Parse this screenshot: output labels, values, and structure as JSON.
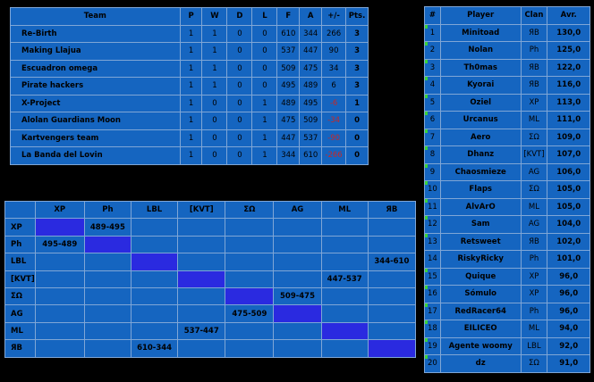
{
  "standings": {
    "headers": [
      "Team",
      "P",
      "W",
      "D",
      "L",
      "F",
      "A",
      "+/-",
      "Pts."
    ],
    "rows": [
      {
        "team": "Re-Birth",
        "p": "1",
        "w": "1",
        "d": "0",
        "l": "0",
        "f": "610",
        "a": "344",
        "diff": "266",
        "pts": "3",
        "neg": false
      },
      {
        "team": "Making Llajua",
        "p": "1",
        "w": "1",
        "d": "0",
        "l": "0",
        "f": "537",
        "a": "447",
        "diff": "90",
        "pts": "3",
        "neg": false
      },
      {
        "team": "Escuadron omega",
        "p": "1",
        "w": "1",
        "d": "0",
        "l": "0",
        "f": "509",
        "a": "475",
        "diff": "34",
        "pts": "3",
        "neg": false
      },
      {
        "team": "Pirate hackers",
        "p": "1",
        "w": "1",
        "d": "0",
        "l": "0",
        "f": "495",
        "a": "489",
        "diff": "6",
        "pts": "3",
        "neg": false
      },
      {
        "team": "X-Project",
        "p": "1",
        "w": "0",
        "d": "0",
        "l": "1",
        "f": "489",
        "a": "495",
        "diff": "-6",
        "pts": "1",
        "neg": true
      },
      {
        "team": "Alolan Guardians Moon",
        "p": "1",
        "w": "0",
        "d": "0",
        "l": "1",
        "f": "475",
        "a": "509",
        "diff": "-34",
        "pts": "0",
        "neg": true
      },
      {
        "team": "Kartvengers team",
        "p": "1",
        "w": "0",
        "d": "0",
        "l": "1",
        "f": "447",
        "a": "537",
        "diff": "-90",
        "pts": "0",
        "neg": true
      },
      {
        "team": "La Banda del Lovin",
        "p": "1",
        "w": "0",
        "d": "0",
        "l": "1",
        "f": "344",
        "a": "610",
        "diff": "-266",
        "pts": "0",
        "neg": true
      }
    ]
  },
  "matrix": {
    "corner": "",
    "clans": [
      "XP",
      "Ph",
      "LBL",
      "[KVT]",
      "ΣΩ",
      "AG",
      "ML",
      "ЯB"
    ],
    "cells": [
      [
        "",
        "489-495",
        "",
        "",
        "",
        "",
        "",
        ""
      ],
      [
        "495-489",
        "",
        "",
        "",
        "",
        "",
        "",
        ""
      ],
      [
        "",
        "",
        "",
        "",
        "",
        "",
        "",
        "344-610"
      ],
      [
        "",
        "",
        "",
        "",
        "",
        "",
        "447-537",
        ""
      ],
      [
        "",
        "",
        "",
        "",
        "",
        "509-475",
        "",
        ""
      ],
      [
        "",
        "",
        "",
        "",
        "475-509",
        "",
        "",
        ""
      ],
      [
        "",
        "",
        "",
        "537-447",
        "",
        "",
        "",
        ""
      ],
      [
        "",
        "",
        "610-344",
        "",
        "",
        "",
        "",
        ""
      ]
    ]
  },
  "ranking": {
    "headers": [
      "#",
      "Player",
      "Clan",
      "Avr."
    ],
    "rows": [
      {
        "rank": "1",
        "player": "Minitoad",
        "clan": "ЯB",
        "avr": "130,0",
        "mark": true
      },
      {
        "rank": "2",
        "player": "Nolan",
        "clan": "Ph",
        "avr": "125,0",
        "mark": true
      },
      {
        "rank": "3",
        "player": "Th0mas",
        "clan": "ЯB",
        "avr": "122,0",
        "mark": true
      },
      {
        "rank": "4",
        "player": "Kyorai",
        "clan": "ЯB",
        "avr": "116,0",
        "mark": true
      },
      {
        "rank": "5",
        "player": "Oziel",
        "clan": "XP",
        "avr": "113,0",
        "mark": true
      },
      {
        "rank": "6",
        "player": "Urcanus",
        "clan": "ML",
        "avr": "111,0",
        "mark": true
      },
      {
        "rank": "7",
        "player": "Aero",
        "clan": "ΣΩ",
        "avr": "109,0",
        "mark": true
      },
      {
        "rank": "8",
        "player": "Dhanz",
        "clan": "[KVT]",
        "avr": "107,0",
        "mark": true
      },
      {
        "rank": "9",
        "player": "Chaosmieze",
        "clan": "AG",
        "avr": "106,0",
        "mark": true
      },
      {
        "rank": "10",
        "player": "Flaps",
        "clan": "ΣΩ",
        "avr": "105,0",
        "mark": true
      },
      {
        "rank": "11",
        "player": "AlvArO",
        "clan": "ML",
        "avr": "105,0",
        "mark": true
      },
      {
        "rank": "12",
        "player": "Sam",
        "clan": "AG",
        "avr": "104,0",
        "mark": true
      },
      {
        "rank": "13",
        "player": "Retsweet",
        "clan": "ЯB",
        "avr": "102,0",
        "mark": true
      },
      {
        "rank": "14",
        "player": "RiskyRicky",
        "clan": "Ph",
        "avr": "101,0",
        "mark": false
      },
      {
        "rank": "15",
        "player": "Quique",
        "clan": "XP",
        "avr": "96,0",
        "mark": true
      },
      {
        "rank": "16",
        "player": "Sómulo",
        "clan": "XP",
        "avr": "96,0",
        "mark": true
      },
      {
        "rank": "17",
        "player": "RedRacer64",
        "clan": "Ph",
        "avr": "96,0",
        "mark": true
      },
      {
        "rank": "18",
        "player": "EILICEO",
        "clan": "ML",
        "avr": "94,0",
        "mark": true
      },
      {
        "rank": "19",
        "player": "Agente woomy",
        "clan": "LBL",
        "avr": "92,0",
        "mark": true
      },
      {
        "rank": "20",
        "player": "dz",
        "clan": "ΣΩ",
        "avr": "91,0",
        "mark": true
      }
    ]
  }
}
